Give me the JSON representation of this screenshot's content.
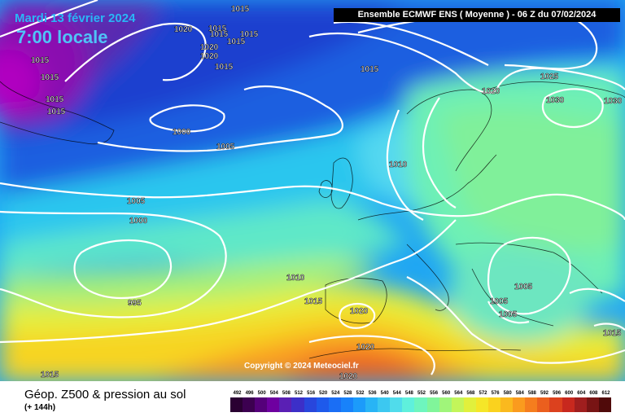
{
  "header": {
    "date": "Mardi 13 février 2024",
    "local_time": "7:00 locale",
    "model_info": "Ensemble ECMWF ENS  ( Moyenne )  -  06 Z du 07/02/2024"
  },
  "copyright": "Copyright © 2024 Meteociel.fr",
  "legend": {
    "title": "Géop. Z500 & pression au sol",
    "subtitle": "(+ 144h)",
    "scale_values": [
      "492",
      "496",
      "500",
      "504",
      "508",
      "512",
      "516",
      "520",
      "524",
      "528",
      "532",
      "536",
      "540",
      "544",
      "548",
      "552",
      "556",
      "560",
      "564",
      "568",
      "572",
      "576",
      "580",
      "584",
      "588",
      "592",
      "596",
      "600",
      "604",
      "608",
      "612"
    ],
    "scale_colors": [
      "#2a0032",
      "#3c0050",
      "#55007a",
      "#6e00a0",
      "#5a1fb4",
      "#3c2fc8",
      "#2846dc",
      "#1e5aeb",
      "#1a6ef5",
      "#1882fa",
      "#1c9bfa",
      "#28b4f5",
      "#3cc8f0",
      "#50dceb",
      "#5ff0dc",
      "#6ef5be",
      "#80f59a",
      "#a0f57a",
      "#c3f55a",
      "#e1f03c",
      "#f5e628",
      "#fad21e",
      "#fab91e",
      "#fa9b1e",
      "#f57d1e",
      "#eb5f1e",
      "#dc411e",
      "#c8281e",
      "#a01e1e",
      "#781414",
      "#500a0a"
    ]
  },
  "pressure_labels": [
    "1015",
    "1015",
    "1020",
    "1015",
    "1015",
    "1015",
    "1020",
    "1020",
    "1015",
    "1015",
    "1015",
    "1015",
    "1015",
    "1000",
    "1005",
    "1015",
    "1020",
    "1025",
    "1030",
    "1030",
    "1010",
    "1005",
    "1000",
    "995",
    "1010",
    "1015",
    "1020",
    "1020",
    "1005",
    "1005",
    "1005",
    "1015",
    "1015",
    "1020"
  ],
  "land_color": "#000000",
  "isobar_color": "#ffffff"
}
